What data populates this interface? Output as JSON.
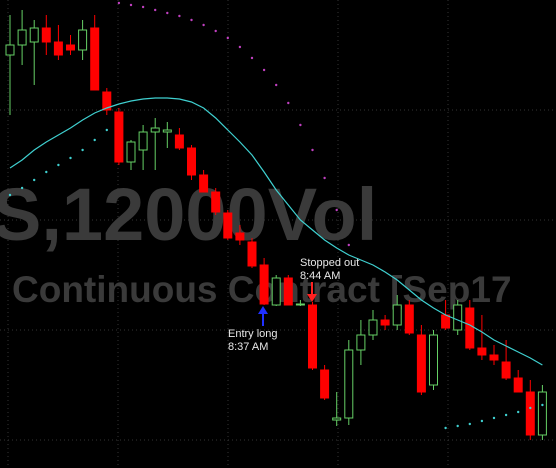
{
  "chart_data": {
    "type": "candlestick",
    "watermark": "S,12000Vol",
    "subtitle": "Continuous Contract [Sep17",
    "ylim": [
      0,
      468
    ],
    "grid": true,
    "up_color": "#66d166",
    "down_color": "#ff0000",
    "candles": {
      "open": [
        413,
        423,
        426,
        440,
        426,
        423,
        418,
        440,
        376,
        356,
        306,
        318,
        336,
        336,
        333,
        320,
        293,
        276,
        255,
        235,
        226,
        203,
        163,
        190,
        163,
        163,
        98,
        48,
        50,
        118,
        133,
        148,
        143,
        163,
        133,
        83,
        153,
        138,
        160,
        120,
        113,
        106,
        90,
        76,
        33
      ],
      "high": [
        453,
        458,
        448,
        453,
        443,
        433,
        448,
        453,
        380,
        360,
        328,
        343,
        350,
        346,
        340,
        323,
        298,
        280,
        258,
        243,
        230,
        210,
        193,
        193,
        168,
        166,
        103,
        76,
        128,
        148,
        158,
        153,
        173,
        168,
        143,
        138,
        168,
        168,
        168,
        153,
        123,
        128,
        98,
        88,
        83
      ],
      "low": [
        353,
        403,
        383,
        413,
        408,
        413,
        408,
        378,
        353,
        303,
        298,
        298,
        298,
        320,
        318,
        288,
        276,
        253,
        228,
        223,
        200,
        163,
        162,
        163,
        162,
        98,
        68,
        42,
        43,
        103,
        128,
        138,
        138,
        133,
        73,
        78,
        138,
        133,
        118,
        108,
        103,
        88,
        76,
        28,
        28
      ],
      "close": [
        423,
        438,
        440,
        426,
        413,
        418,
        438,
        378,
        358,
        306,
        326,
        336,
        340,
        338,
        320,
        293,
        276,
        256,
        230,
        228,
        202,
        164,
        190,
        163,
        164,
        100,
        70,
        50,
        118,
        133,
        148,
        143,
        163,
        135,
        76,
        133,
        140,
        163,
        120,
        113,
        108,
        90,
        76,
        33,
        76
      ]
    },
    "series": [
      {
        "style": "line",
        "color": "#3fd0d0",
        "values": [
          300,
          308,
          318,
          326,
          333,
          340,
          348,
          355,
          360,
          364,
          367,
          369,
          370,
          370,
          369,
          366,
          360,
          350,
          338,
          326,
          313,
          296,
          278,
          263,
          248,
          238,
          228,
          220,
          213,
          208,
          203,
          196,
          188,
          178,
          168,
          160,
          153,
          148,
          143,
          136,
          128,
          122,
          116,
          110,
          103
        ]
      },
      {
        "style": "dots",
        "color": "#3fd0d0",
        "values": [
          273,
          280,
          288,
          296,
          303,
          310,
          318,
          328,
          338,
          null,
          null,
          null,
          null,
          null,
          null,
          null,
          null,
          null,
          null,
          null,
          null,
          null,
          null,
          null,
          null,
          null,
          null,
          null,
          null,
          null,
          null,
          null,
          null,
          null,
          null,
          null,
          40,
          42,
          44,
          47,
          50,
          53,
          56,
          60,
          63
        ]
      },
      {
        "style": "dots",
        "color": "#c040c0",
        "values": [
          null,
          null,
          null,
          null,
          null,
          null,
          null,
          null,
          null,
          465,
          463,
          461,
          458,
          455,
          452,
          448,
          443,
          437,
          430,
          421,
          410,
          398,
          383,
          365,
          343,
          318,
          290,
          258,
          223,
          null,
          null,
          null,
          null,
          null,
          null,
          null,
          null,
          null,
          null,
          null,
          null,
          null,
          null,
          null,
          null
        ]
      }
    ],
    "annotations": [
      {
        "lines": [
          "Entry long",
          "8:37 AM"
        ]
      },
      {
        "lines": [
          "Stopped out",
          "8:44 AM"
        ]
      }
    ]
  }
}
